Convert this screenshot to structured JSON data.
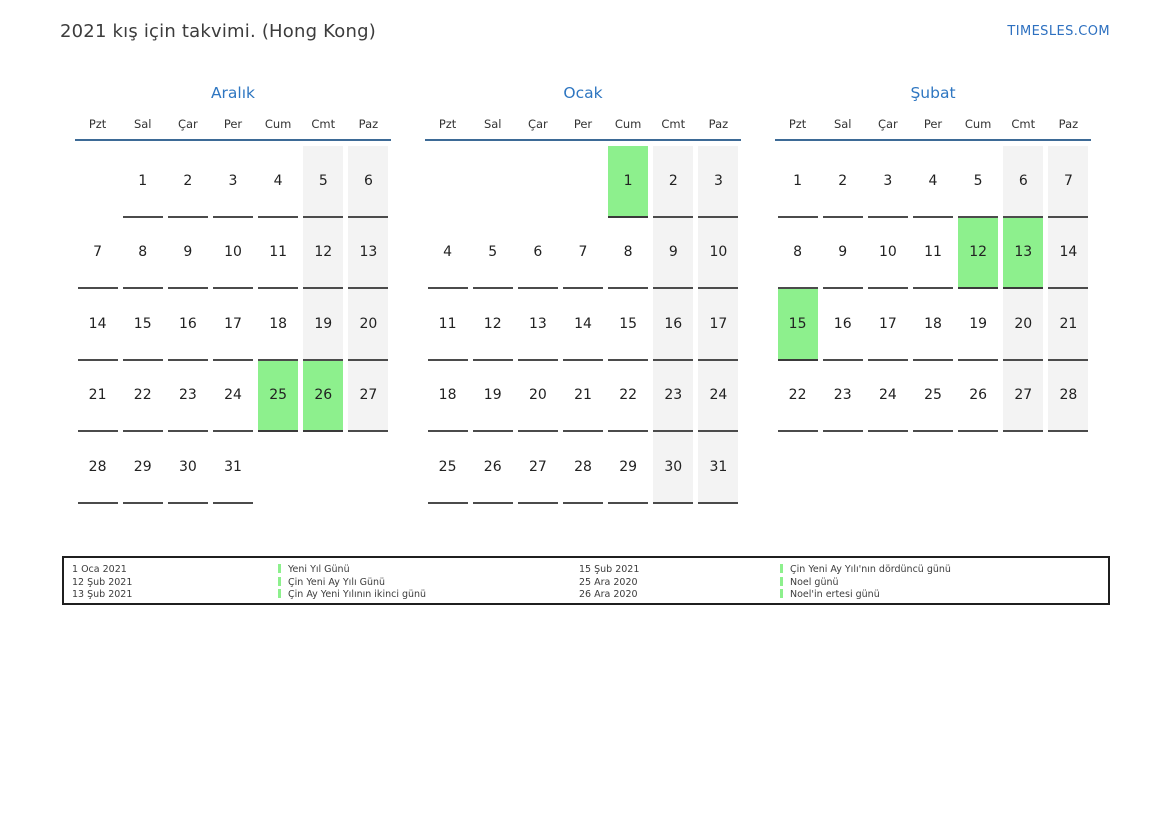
{
  "page": {
    "title": "2021 kış için takvimi. (Hong Kong)",
    "site_link": "TIMESLES.COM"
  },
  "colors": {
    "accent_blue": "#2e76c1",
    "header_rule_blue": "#3d6a96",
    "holiday_green": "#8df08d",
    "weekend_gray": "#f3f3f3",
    "underline_dark": "#4b4b4b"
  },
  "weekday_headers": [
    "Pzt",
    "Sal",
    "Çar",
    "Per",
    "Cum",
    "Cmt",
    "Paz"
  ],
  "months": [
    {
      "name": "Aralık",
      "holidays": [
        25,
        26
      ],
      "weeks": [
        [
          "",
          1,
          2,
          3,
          4,
          5,
          6
        ],
        [
          7,
          8,
          9,
          10,
          11,
          12,
          13
        ],
        [
          14,
          15,
          16,
          17,
          18,
          19,
          20
        ],
        [
          21,
          22,
          23,
          24,
          25,
          26,
          27
        ],
        [
          28,
          29,
          30,
          31,
          "",
          "",
          ""
        ]
      ]
    },
    {
      "name": "Ocak",
      "holidays": [
        1
      ],
      "weeks": [
        [
          "",
          "",
          "",
          "",
          1,
          2,
          3
        ],
        [
          4,
          5,
          6,
          7,
          8,
          9,
          10
        ],
        [
          11,
          12,
          13,
          14,
          15,
          16,
          17
        ],
        [
          18,
          19,
          20,
          21,
          22,
          23,
          24
        ],
        [
          25,
          26,
          27,
          28,
          29,
          30,
          31
        ]
      ]
    },
    {
      "name": "Şubat",
      "holidays": [
        12,
        13,
        15
      ],
      "weeks": [
        [
          1,
          2,
          3,
          4,
          5,
          6,
          7
        ],
        [
          8,
          9,
          10,
          11,
          12,
          13,
          14
        ],
        [
          15,
          16,
          17,
          18,
          19,
          20,
          21
        ],
        [
          22,
          23,
          24,
          25,
          26,
          27,
          28
        ]
      ]
    }
  ],
  "legend": {
    "columns": [
      {
        "entries": [
          {
            "date": "1 Oca 2021",
            "name": "Yeni Yıl Günü"
          },
          {
            "date": "12 Şub 2021",
            "name": "Çin Yeni Ay Yılı Günü"
          },
          {
            "date": "13 Şub 2021",
            "name": "Çin Ay Yeni Yılının ikinci günü"
          }
        ]
      },
      {
        "entries": [
          {
            "date": "15 Şub 2021",
            "name": "Çin Yeni Ay Yılı'nın dördüncü günü"
          },
          {
            "date": "25 Ara 2020",
            "name": "Noel günü"
          },
          {
            "date": "26 Ara 2020",
            "name": "Noel'in ertesi günü"
          }
        ]
      }
    ]
  }
}
